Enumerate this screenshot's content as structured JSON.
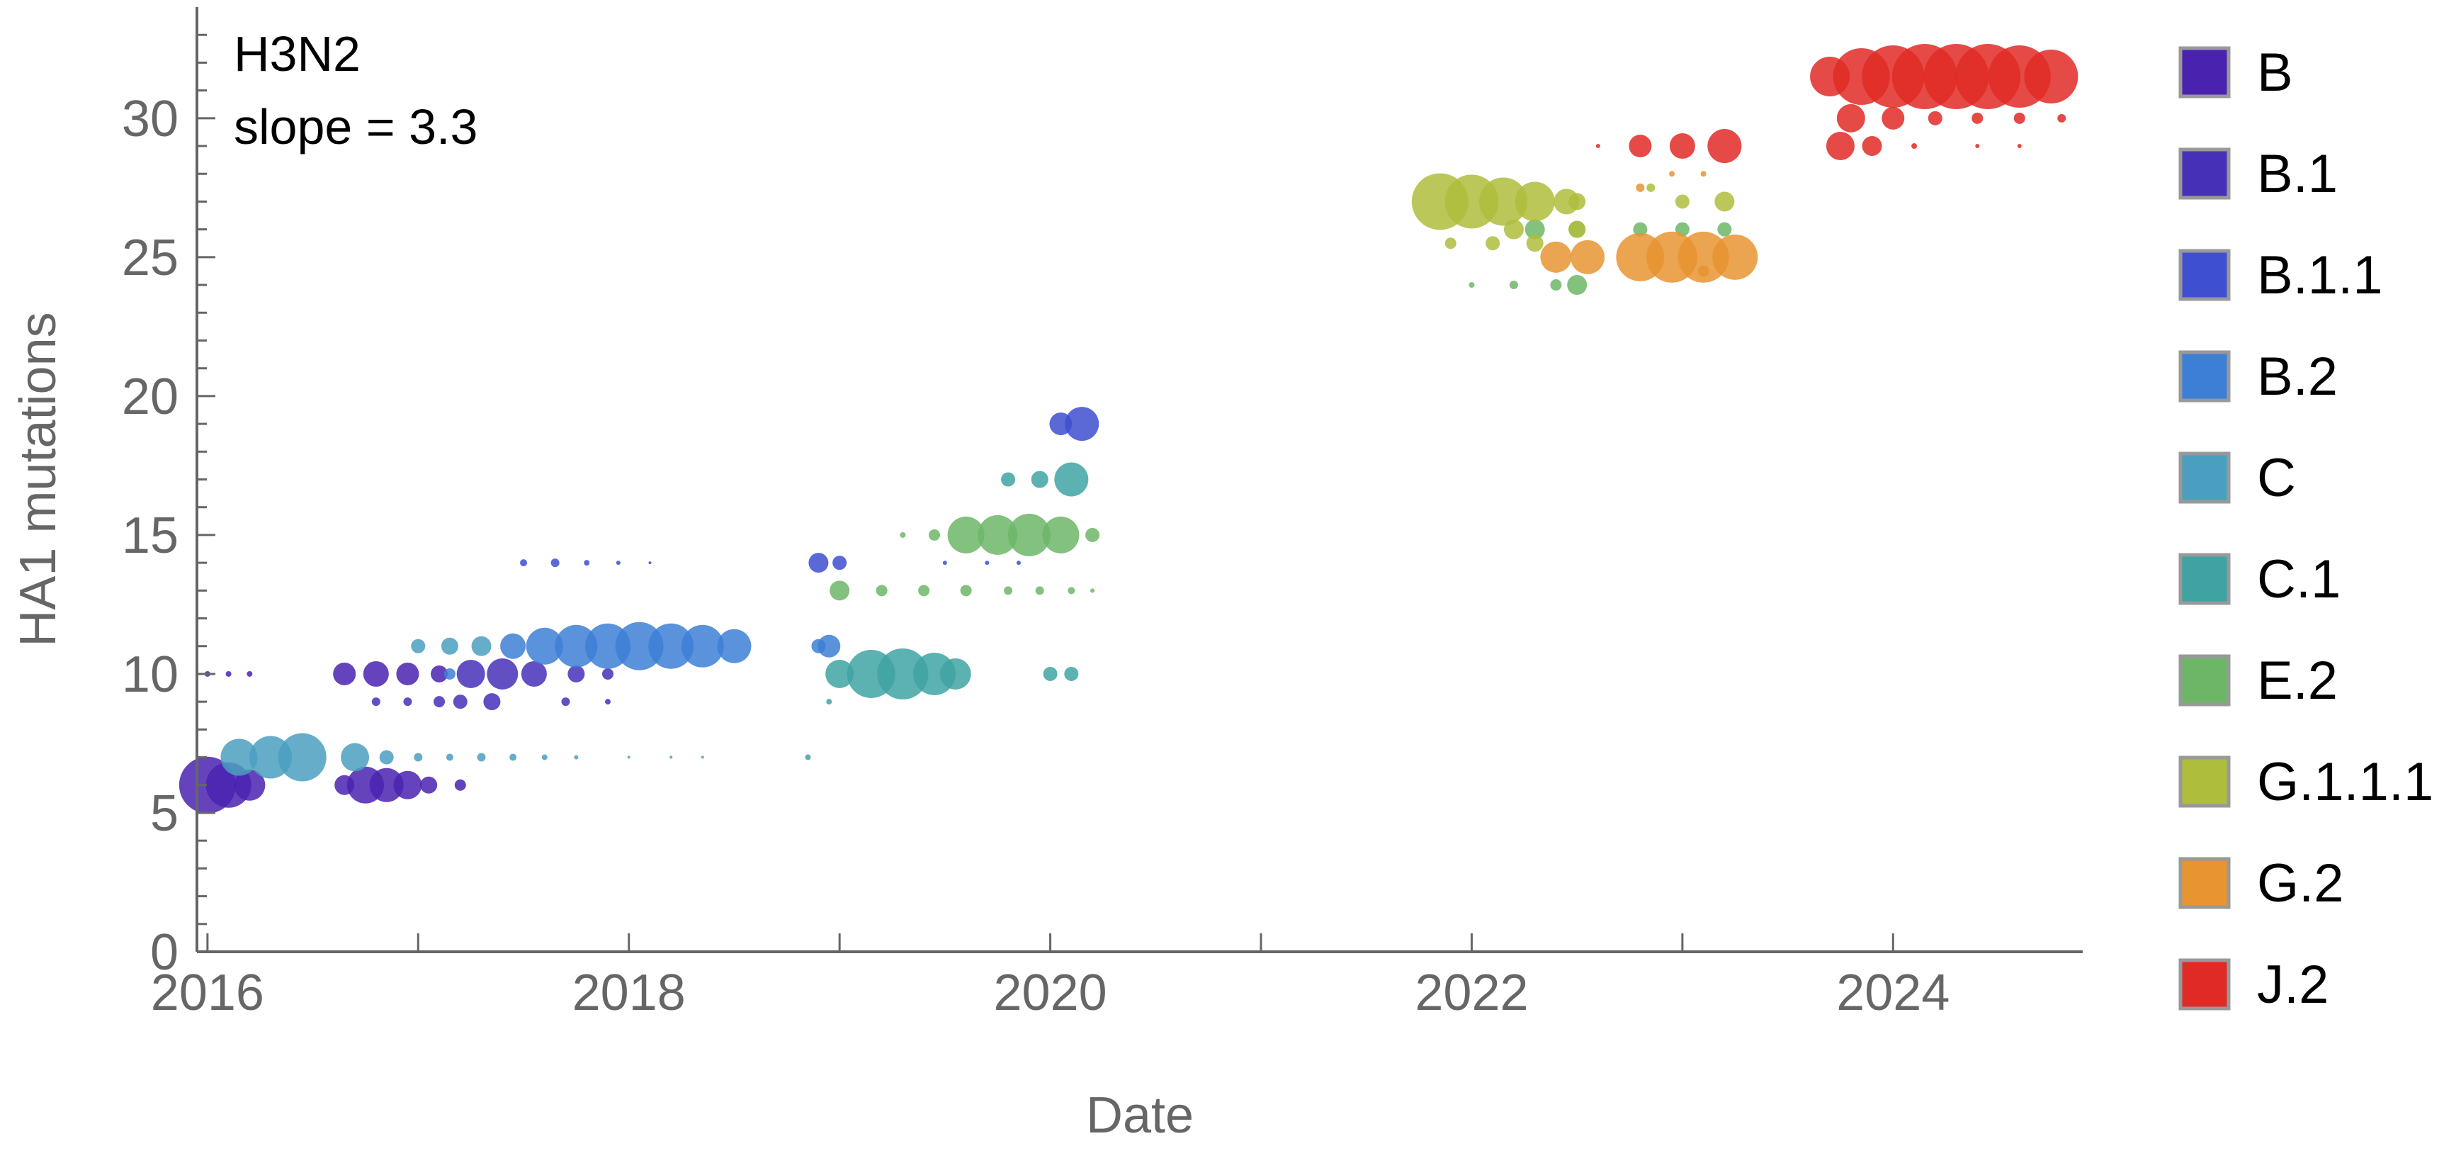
{
  "chart_data": {
    "type": "scatter",
    "xlabel": "Date",
    "ylabel": "HA1 mutations",
    "xlim": [
      2015.95,
      2024.9
    ],
    "ylim": [
      0,
      34
    ],
    "x_ticks": [
      "2016",
      "2018",
      "2020",
      "2022",
      "2024"
    ],
    "y_ticks": [
      "0",
      "5",
      "10",
      "15",
      "20",
      "25",
      "30"
    ],
    "annotations": {
      "subtype": "H3N2",
      "slope": "slope = 3.3"
    },
    "grid": false,
    "legend_position": "right",
    "series": [
      {
        "name": "B",
        "color": "#4a22b0",
        "points": [
          [
            2016.0,
            6,
            40
          ],
          [
            2016.1,
            6,
            32
          ],
          [
            2016.2,
            6,
            22
          ],
          [
            2016.65,
            6,
            14
          ],
          [
            2016.75,
            6,
            26
          ],
          [
            2016.85,
            6,
            24
          ],
          [
            2016.95,
            6,
            20
          ],
          [
            2017.05,
            6,
            12
          ],
          [
            2017.2,
            6,
            8
          ],
          [
            2016.0,
            10,
            4
          ],
          [
            2016.1,
            10,
            4
          ],
          [
            2016.2,
            10,
            4
          ],
          [
            2016.65,
            10,
            16
          ],
          [
            2016.8,
            10,
            18
          ],
          [
            2016.95,
            10,
            16
          ],
          [
            2017.1,
            10,
            12
          ]
        ]
      },
      {
        "name": "B.1",
        "color": "#4630b8",
        "points": [
          [
            2016.8,
            9,
            6
          ],
          [
            2016.95,
            9,
            6
          ],
          [
            2017.1,
            9,
            8
          ],
          [
            2017.25,
            10,
            20
          ],
          [
            2017.4,
            10,
            22
          ],
          [
            2017.55,
            10,
            18
          ],
          [
            2017.75,
            10,
            12
          ],
          [
            2017.9,
            10,
            8
          ],
          [
            2017.2,
            9,
            10
          ],
          [
            2017.35,
            9,
            12
          ],
          [
            2017.7,
            9,
            6
          ],
          [
            2017.9,
            9,
            4
          ]
        ]
      },
      {
        "name": "B.1.1",
        "color": "#3e4fd0",
        "points": [
          [
            2017.5,
            14,
            5
          ],
          [
            2017.65,
            14,
            6
          ],
          [
            2017.8,
            14,
            4
          ],
          [
            2017.95,
            14,
            3
          ],
          [
            2018.1,
            14,
            2
          ],
          [
            2018.9,
            14,
            14
          ],
          [
            2019.0,
            14,
            10
          ],
          [
            2019.5,
            14,
            3
          ],
          [
            2019.7,
            14,
            3
          ],
          [
            2019.85,
            14,
            3
          ],
          [
            2020.15,
            19,
            24
          ],
          [
            2020.05,
            19,
            16
          ]
        ]
      },
      {
        "name": "B.2",
        "color": "#3d7fd6",
        "points": [
          [
            2017.45,
            11,
            18
          ],
          [
            2017.6,
            11,
            26
          ],
          [
            2017.75,
            11,
            30
          ],
          [
            2017.9,
            11,
            32
          ],
          [
            2018.05,
            11,
            34
          ],
          [
            2018.2,
            11,
            32
          ],
          [
            2018.35,
            11,
            30
          ],
          [
            2018.5,
            11,
            24
          ],
          [
            2017.15,
            10,
            8
          ],
          [
            2018.95,
            11,
            16
          ],
          [
            2018.9,
            11,
            10
          ]
        ]
      },
      {
        "name": "C",
        "color": "#4a9fc0",
        "points": [
          [
            2016.15,
            7,
            26
          ],
          [
            2016.3,
            7,
            30
          ],
          [
            2016.45,
            7,
            34
          ],
          [
            2016.7,
            7,
            20
          ],
          [
            2016.85,
            7,
            10
          ],
          [
            2017.0,
            7,
            6
          ],
          [
            2017.15,
            7,
            5
          ],
          [
            2017.3,
            7,
            6
          ],
          [
            2017.45,
            7,
            5
          ],
          [
            2017.6,
            7,
            4
          ],
          [
            2017.75,
            7,
            3
          ],
          [
            2018.0,
            7,
            2
          ],
          [
            2018.2,
            7,
            2
          ],
          [
            2018.35,
            7,
            2
          ],
          [
            2017.0,
            11,
            10
          ],
          [
            2017.15,
            11,
            12
          ],
          [
            2017.3,
            11,
            14
          ]
        ]
      },
      {
        "name": "C.1",
        "color": "#3fa3a3",
        "points": [
          [
            2019.0,
            10,
            20
          ],
          [
            2019.15,
            10,
            34
          ],
          [
            2019.3,
            10,
            36
          ],
          [
            2019.45,
            10,
            30
          ],
          [
            2019.55,
            10,
            22
          ],
          [
            2020.0,
            10,
            10
          ],
          [
            2020.1,
            10,
            10
          ],
          [
            2019.8,
            17,
            10
          ],
          [
            2019.95,
            17,
            12
          ],
          [
            2020.1,
            17,
            24
          ],
          [
            2018.85,
            7,
            4
          ],
          [
            2018.95,
            9,
            4
          ]
        ]
      },
      {
        "name": "E.2",
        "color": "#6db667",
        "points": [
          [
            2019.6,
            15,
            26
          ],
          [
            2019.75,
            15,
            28
          ],
          [
            2019.9,
            15,
            30
          ],
          [
            2020.05,
            15,
            26
          ],
          [
            2020.2,
            15,
            10
          ],
          [
            2019.45,
            15,
            8
          ],
          [
            2019.3,
            15,
            4
          ],
          [
            2019.0,
            13,
            14
          ],
          [
            2019.2,
            13,
            8
          ],
          [
            2019.4,
            13,
            8
          ],
          [
            2019.6,
            13,
            8
          ],
          [
            2019.8,
            13,
            6
          ],
          [
            2019.95,
            13,
            6
          ],
          [
            2020.1,
            13,
            5
          ],
          [
            2020.2,
            13,
            3
          ],
          [
            2022.3,
            26,
            14
          ],
          [
            2022.5,
            26,
            12
          ],
          [
            2022.8,
            26,
            10
          ],
          [
            2023.0,
            26,
            10
          ],
          [
            2023.2,
            26,
            10
          ],
          [
            2022.2,
            24,
            6
          ],
          [
            2022.4,
            24,
            8
          ],
          [
            2022.5,
            24,
            14
          ],
          [
            2022.0,
            24,
            4
          ]
        ]
      },
      {
        "name": "G.1.1.1",
        "color": "#afbd3c",
        "points": [
          [
            2021.85,
            27,
            40
          ],
          [
            2022.0,
            27,
            38
          ],
          [
            2022.15,
            27,
            34
          ],
          [
            2022.3,
            27,
            28
          ],
          [
            2022.45,
            27,
            18
          ],
          [
            2022.5,
            27,
            12
          ],
          [
            2022.3,
            25.5,
            12
          ],
          [
            2022.1,
            25.5,
            10
          ],
          [
            2021.9,
            25.5,
            8
          ],
          [
            2022.85,
            27.5,
            6
          ],
          [
            2023.0,
            27,
            10
          ],
          [
            2023.2,
            27,
            14
          ],
          [
            2022.5,
            26,
            12
          ],
          [
            2022.2,
            26,
            14
          ]
        ]
      },
      {
        "name": "G.2",
        "color": "#e89430",
        "points": [
          [
            2022.4,
            25,
            22
          ],
          [
            2022.55,
            25,
            24
          ],
          [
            2022.8,
            25,
            34
          ],
          [
            2022.95,
            25,
            36
          ],
          [
            2023.1,
            25,
            36
          ],
          [
            2023.25,
            25,
            32
          ],
          [
            2023.1,
            24.5,
            8
          ],
          [
            2022.8,
            27.5,
            6
          ],
          [
            2022.95,
            28,
            4
          ],
          [
            2023.1,
            28,
            4
          ]
        ]
      },
      {
        "name": "J.2",
        "color": "#e02a26",
        "points": [
          [
            2023.7,
            31.5,
            28
          ],
          [
            2023.85,
            31.5,
            40
          ],
          [
            2024.0,
            31.5,
            44
          ],
          [
            2024.15,
            31.5,
            46
          ],
          [
            2024.3,
            31.5,
            46
          ],
          [
            2024.45,
            31.5,
            46
          ],
          [
            2024.6,
            31.5,
            44
          ],
          [
            2024.75,
            31.5,
            38
          ],
          [
            2023.8,
            30,
            20
          ],
          [
            2024.0,
            30,
            16
          ],
          [
            2024.2,
            30,
            10
          ],
          [
            2024.4,
            30,
            8
          ],
          [
            2024.6,
            30,
            8
          ],
          [
            2024.8,
            30,
            6
          ],
          [
            2023.75,
            29,
            20
          ],
          [
            2023.9,
            29,
            14
          ],
          [
            2024.1,
            29,
            4
          ],
          [
            2024.4,
            29,
            3
          ],
          [
            2024.6,
            29,
            3
          ],
          [
            2022.8,
            29,
            16
          ],
          [
            2023.0,
            29,
            18
          ],
          [
            2023.2,
            29,
            24
          ],
          [
            2022.6,
            29,
            3
          ]
        ]
      }
    ]
  }
}
